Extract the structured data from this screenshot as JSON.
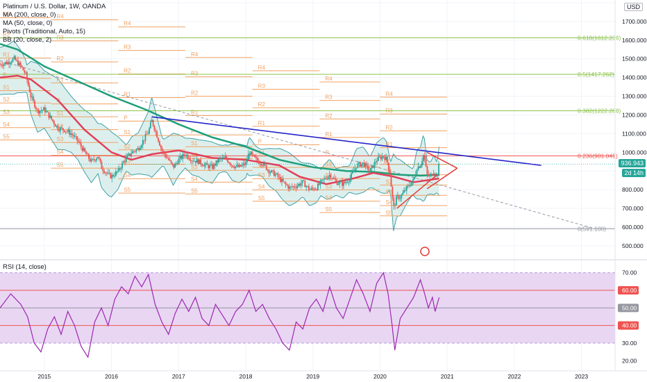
{
  "legend": {
    "title": "Platinum / U.S. Dollar, 1W, OANDA",
    "ma200": "MA (200, close, 0)",
    "ma50": "MA (50, close, 0)",
    "pivots": "Pivots (Traditional, Auto, 15)",
    "bb": "BB (20, close, 2)"
  },
  "rsi_legend": "RSI (14, close)",
  "currency_button": "USD",
  "price_badge": "936.943",
  "countdown_badge": "2d 14h",
  "colors": {
    "up": "#26a69a",
    "down": "#ef5350",
    "ma200": "#1e9f7a",
    "ma50": "#e0405a",
    "bb_fill": "#d7ecea",
    "bb_line": "#3ea0a6",
    "pivot": "#f0a060",
    "fib_green": "#8bc34a",
    "fib_0": "#9598a1",
    "trend_blue": "#2424c8",
    "triangle": "#e53935",
    "rsi": "#9c27b0",
    "rsi_band": "#e9d6f3"
  },
  "chart_data": [
    {
      "type": "candlestick",
      "title": "Platinum / U.S. Dollar, 1W, OANDA",
      "x_ticks": [
        "2015",
        "2016",
        "2017",
        "2018",
        "2019",
        "2020",
        "2021",
        "2022",
        "2023"
      ],
      "x_tick_values": [
        2015,
        2016,
        2017,
        2018,
        2019,
        2020,
        2021,
        2022,
        2023
      ],
      "xlim": [
        2014.34,
        2023.5
      ],
      "y_ticks": [
        "1800.000",
        "1700.000",
        "1600.000",
        "1500.000",
        "1400.000",
        "1300.000",
        "1200.000",
        "1100.000",
        "1000.000",
        "900.000",
        "800.000",
        "700.000",
        "600.000",
        "500.000"
      ],
      "y_tick_values": [
        1800,
        1700,
        1600,
        1500,
        1400,
        1300,
        1200,
        1100,
        1000,
        900,
        800,
        700,
        600,
        500
      ],
      "ylim": [
        440,
        1800
      ],
      "last_price": 936.943,
      "fib_levels": [
        {
          "label": "0.618(1612.236)",
          "value": 1612.236
        },
        {
          "label": "0.5(1417.262)",
          "value": 1417.262
        },
        {
          "label": "0.382(1222.288)",
          "value": 1222.288
        },
        {
          "label": "0.236(981.049)",
          "value": 981.049
        },
        {
          "label": "0(591.100)",
          "value": 591.1
        }
      ],
      "pivot_labels": [
        "R4",
        "R3",
        "R2",
        "R1",
        "P",
        "S1",
        "S2",
        "S3",
        "S4",
        "S5"
      ],
      "close_path": [
        [
          2014.34,
          1470
        ],
        [
          2014.45,
          1480
        ],
        [
          2014.55,
          1500
        ],
        [
          2014.65,
          1460
        ],
        [
          2014.72,
          1420
        ],
        [
          2014.8,
          1300
        ],
        [
          2014.9,
          1220
        ],
        [
          2015.0,
          1230
        ],
        [
          2015.1,
          1180
        ],
        [
          2015.2,
          1130
        ],
        [
          2015.3,
          1120
        ],
        [
          2015.4,
          1100
        ],
        [
          2015.5,
          1060
        ],
        [
          2015.6,
          1000
        ],
        [
          2015.7,
          950
        ],
        [
          2015.8,
          980
        ],
        [
          2015.85,
          920
        ],
        [
          2015.95,
          880
        ],
        [
          2016.0,
          870
        ],
        [
          2016.1,
          900
        ],
        [
          2016.2,
          960
        ],
        [
          2016.3,
          1000
        ],
        [
          2016.4,
          1020
        ],
        [
          2016.5,
          1080
        ],
        [
          2016.55,
          1110
        ],
        [
          2016.6,
          1170
        ],
        [
          2016.65,
          1120
        ],
        [
          2016.75,
          1010
        ],
        [
          2016.85,
          960
        ],
        [
          2016.92,
          920
        ],
        [
          2017.0,
          960
        ],
        [
          2017.1,
          990
        ],
        [
          2017.2,
          960
        ],
        [
          2017.3,
          950
        ],
        [
          2017.4,
          930
        ],
        [
          2017.5,
          920
        ],
        [
          2017.6,
          960
        ],
        [
          2017.7,
          970
        ],
        [
          2017.8,
          930
        ],
        [
          2017.9,
          920
        ],
        [
          2018.0,
          940
        ],
        [
          2018.05,
          1000
        ],
        [
          2018.15,
          960
        ],
        [
          2018.25,
          940
        ],
        [
          2018.35,
          900
        ],
        [
          2018.45,
          880
        ],
        [
          2018.55,
          840
        ],
        [
          2018.65,
          810
        ],
        [
          2018.75,
          820
        ],
        [
          2018.85,
          840
        ],
        [
          2018.95,
          800
        ],
        [
          2019.05,
          810
        ],
        [
          2019.15,
          850
        ],
        [
          2019.25,
          880
        ],
        [
          2019.35,
          840
        ],
        [
          2019.45,
          830
        ],
        [
          2019.55,
          860
        ],
        [
          2019.65,
          930
        ],
        [
          2019.75,
          940
        ],
        [
          2019.85,
          900
        ],
        [
          2019.95,
          960
        ],
        [
          2020.05,
          980
        ],
        [
          2020.1,
          960
        ],
        [
          2020.15,
          880
        ],
        [
          2020.2,
          700
        ],
        [
          2020.25,
          760
        ],
        [
          2020.3,
          760
        ],
        [
          2020.4,
          810
        ],
        [
          2020.45,
          830
        ],
        [
          2020.5,
          850
        ],
        [
          2020.55,
          920
        ],
        [
          2020.6,
          930
        ],
        [
          2020.65,
          990
        ],
        [
          2020.7,
          880
        ],
        [
          2020.75,
          870
        ],
        [
          2020.8,
          900
        ],
        [
          2020.85,
          870
        ],
        [
          2020.88,
          937
        ]
      ],
      "ma200_path": [
        [
          2014.34,
          1580
        ],
        [
          2014.6,
          1550
        ],
        [
          2015.0,
          1460
        ],
        [
          2015.5,
          1380
        ],
        [
          2016.0,
          1300
        ],
        [
          2016.5,
          1230
        ],
        [
          2017.0,
          1150
        ],
        [
          2017.5,
          1080
        ],
        [
          2018.0,
          1030
        ],
        [
          2018.5,
          960
        ],
        [
          2019.0,
          920
        ],
        [
          2019.5,
          900
        ],
        [
          2019.9,
          895
        ],
        [
          2020.3,
          880
        ],
        [
          2020.6,
          875
        ],
        [
          2020.88,
          880
        ]
      ],
      "ma50_path": [
        [
          2014.34,
          1400
        ],
        [
          2014.6,
          1410
        ],
        [
          2014.8,
          1390
        ],
        [
          2015.2,
          1280
        ],
        [
          2015.6,
          1120
        ],
        [
          2016.0,
          1000
        ],
        [
          2016.3,
          960
        ],
        [
          2016.6,
          990
        ],
        [
          2017.0,
          1010
        ],
        [
          2017.5,
          970
        ],
        [
          2018.0,
          960
        ],
        [
          2018.5,
          930
        ],
        [
          2018.8,
          870
        ],
        [
          2019.2,
          830
        ],
        [
          2019.6,
          860
        ],
        [
          2019.9,
          890
        ],
        [
          2020.2,
          870
        ],
        [
          2020.5,
          840
        ],
        [
          2020.88,
          860
        ]
      ],
      "trendline_blue": [
        [
          2016.6,
          1190
        ],
        [
          2022.4,
          930
        ]
      ],
      "trendline_dashed": [
        [
          2014.34,
          1490
        ],
        [
          2023.2,
          591.1
        ]
      ],
      "triangle": [
        [
          2020.7,
          1000
        ],
        [
          2021.15,
          915
        ],
        [
          2020.7,
          805
        ]
      ],
      "wedge_low": [
        [
          2020.25,
          700
        ],
        [
          2020.85,
          880
        ]
      ]
    },
    {
      "type": "line",
      "title": "RSI (14, close)",
      "y_ticks": [
        "70.00",
        "60.00",
        "50.00",
        "40.00",
        "30.00",
        "20.00"
      ],
      "y_tick_values": [
        70,
        60,
        50,
        40,
        30,
        20
      ],
      "ylim": [
        15,
        75
      ],
      "band": [
        30,
        70
      ],
      "reference_lines": [
        60,
        50,
        40
      ],
      "values": [
        [
          2014.34,
          50
        ],
        [
          2014.5,
          58
        ],
        [
          2014.65,
          52
        ],
        [
          2014.75,
          45
        ],
        [
          2014.85,
          30
        ],
        [
          2014.95,
          25
        ],
        [
          2015.05,
          38
        ],
        [
          2015.15,
          45
        ],
        [
          2015.25,
          35
        ],
        [
          2015.35,
          48
        ],
        [
          2015.45,
          40
        ],
        [
          2015.55,
          28
        ],
        [
          2015.65,
          22
        ],
        [
          2015.75,
          42
        ],
        [
          2015.85,
          50
        ],
        [
          2015.95,
          40
        ],
        [
          2016.05,
          55
        ],
        [
          2016.15,
          62
        ],
        [
          2016.25,
          58
        ],
        [
          2016.35,
          68
        ],
        [
          2016.45,
          62
        ],
        [
          2016.55,
          69
        ],
        [
          2016.65,
          52
        ],
        [
          2016.75,
          42
        ],
        [
          2016.85,
          35
        ],
        [
          2016.95,
          47
        ],
        [
          2017.05,
          55
        ],
        [
          2017.15,
          48
        ],
        [
          2017.25,
          56
        ],
        [
          2017.35,
          44
        ],
        [
          2017.45,
          40
        ],
        [
          2017.55,
          52
        ],
        [
          2017.65,
          46
        ],
        [
          2017.75,
          40
        ],
        [
          2017.85,
          48
        ],
        [
          2017.95,
          52
        ],
        [
          2018.05,
          60
        ],
        [
          2018.15,
          48
        ],
        [
          2018.25,
          52
        ],
        [
          2018.35,
          44
        ],
        [
          2018.45,
          38
        ],
        [
          2018.55,
          30
        ],
        [
          2018.65,
          26
        ],
        [
          2018.75,
          42
        ],
        [
          2018.85,
          38
        ],
        [
          2018.95,
          50
        ],
        [
          2019.05,
          55
        ],
        [
          2019.15,
          48
        ],
        [
          2019.25,
          62
        ],
        [
          2019.35,
          50
        ],
        [
          2019.45,
          44
        ],
        [
          2019.55,
          55
        ],
        [
          2019.65,
          66
        ],
        [
          2019.75,
          58
        ],
        [
          2019.85,
          48
        ],
        [
          2019.95,
          64
        ],
        [
          2020.05,
          70
        ],
        [
          2020.12,
          58
        ],
        [
          2020.18,
          40
        ],
        [
          2020.22,
          26
        ],
        [
          2020.3,
          44
        ],
        [
          2020.4,
          50
        ],
        [
          2020.5,
          56
        ],
        [
          2020.6,
          66
        ],
        [
          2020.65,
          60
        ],
        [
          2020.72,
          50
        ],
        [
          2020.78,
          56
        ],
        [
          2020.82,
          48
        ],
        [
          2020.88,
          56
        ]
      ]
    }
  ]
}
